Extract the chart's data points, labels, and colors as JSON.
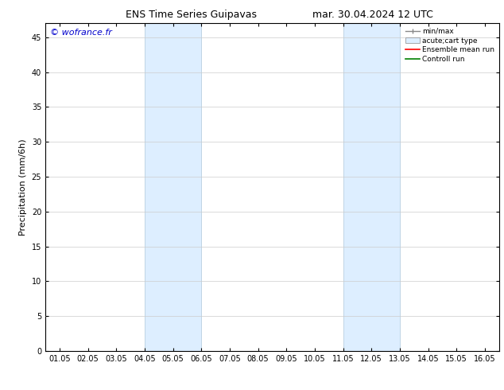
{
  "title_left": "ENS Time Series Guipavas",
  "title_right": "mar. 30.04.2024 12 UTC",
  "ylabel": "Precipitation (mm/6h)",
  "watermark": "© wofrance.fr",
  "watermark_color": "#0000cc",
  "xlim_min": 0.5,
  "xlim_max": 16.5,
  "ylim_min": 0,
  "ylim_max": 47,
  "yticks": [
    0,
    5,
    10,
    15,
    20,
    25,
    30,
    35,
    40,
    45
  ],
  "xtick_labels": [
    "01.05",
    "02.05",
    "03.05",
    "04.05",
    "05.05",
    "06.05",
    "07.05",
    "08.05",
    "09.05",
    "10.05",
    "11.05",
    "12.05",
    "13.05",
    "14.05",
    "15.05",
    "16.05"
  ],
  "shaded_regions": [
    {
      "xmin": 4.0,
      "xmax": 6.0,
      "color": "#ddeeff"
    },
    {
      "xmin": 11.0,
      "xmax": 13.0,
      "color": "#ddeeff"
    }
  ],
  "shaded_border_color": "#b8cfe0",
  "background_color": "#ffffff",
  "grid_color": "#cccccc",
  "title_fontsize": 9,
  "tick_fontsize": 7,
  "ylabel_fontsize": 8,
  "watermark_fontsize": 8
}
